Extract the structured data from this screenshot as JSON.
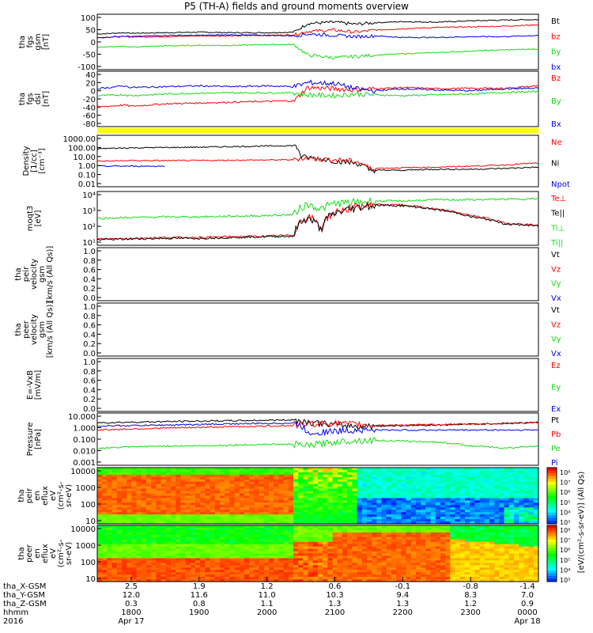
{
  "title": "P5 (TH-A) fields and ground moments overview",
  "colors": {
    "black": "#000000",
    "red": "#ff0000",
    "green": "#11dd11",
    "blue": "#0000ee",
    "yellow": "#ffff00"
  },
  "chart_data": [
    {
      "type": "line",
      "panel": "fgs_gsm",
      "ylabel": [
        "tha",
        "fgs",
        "gsm",
        "[nT]"
      ],
      "yticks": [
        "100",
        "50",
        "0",
        "-50",
        "-100"
      ],
      "ylim": [
        -100,
        110
      ],
      "legend": [
        {
          "name": "Bt",
          "color": "black"
        },
        {
          "name": "bz",
          "color": "red"
        },
        {
          "name": "by",
          "color": "green"
        },
        {
          "name": "bx",
          "color": "blue"
        }
      ],
      "x_hours": [
        17.5,
        17.9,
        18.0,
        18.5,
        19.0,
        19.5,
        20.0,
        20.4,
        20.6,
        21.0,
        21.3,
        21.6,
        22.0,
        22.5,
        23.0,
        23.5,
        24.0
      ],
      "series": [
        {
          "name": "Bt",
          "values": [
            35,
            40,
            38,
            40,
            42,
            40,
            40,
            42,
            75,
            80,
            72,
            78,
            82,
            80,
            85,
            88,
            90
          ]
        },
        {
          "name": "bz",
          "values": [
            22,
            25,
            24,
            25,
            28,
            28,
            30,
            32,
            45,
            50,
            42,
            50,
            55,
            60,
            62,
            65,
            70
          ]
        },
        {
          "name": "by",
          "values": [
            -15,
            -12,
            -14,
            -10,
            -8,
            -8,
            -5,
            -5,
            -45,
            -55,
            -50,
            -45,
            -40,
            -35,
            -30,
            -25,
            -22
          ]
        },
        {
          "name": "bx",
          "values": [
            20,
            28,
            25,
            30,
            30,
            32,
            30,
            28,
            35,
            30,
            25,
            28,
            22,
            22,
            25,
            25,
            30
          ]
        }
      ]
    },
    {
      "type": "line",
      "panel": "fgs_dsl",
      "ylabel": [
        "tha",
        "fgs",
        "dsl",
        "[nT]"
      ],
      "yticks": [
        "40",
        "20",
        "0",
        "-20",
        "-40",
        "-60",
        "-80"
      ],
      "ylim": [
        -88,
        48
      ],
      "legend": [
        {
          "name": "Bz",
          "color": "red"
        },
        {
          "name": "By",
          "color": "green"
        },
        {
          "name": "Bx",
          "color": "blue"
        }
      ],
      "x_hours": [
        17.5,
        17.9,
        18.0,
        18.5,
        19.0,
        19.5,
        20.0,
        20.4,
        20.6,
        21.0,
        21.3,
        21.6,
        22.0,
        22.5,
        23.0,
        23.5,
        24.0
      ],
      "series": [
        {
          "name": "Bz",
          "values": [
            -40,
            -35,
            -38,
            -32,
            -30,
            -28,
            -26,
            -25,
            8,
            5,
            2,
            5,
            8,
            5,
            6,
            6,
            12
          ]
        },
        {
          "name": "By",
          "values": [
            -12,
            -10,
            -12,
            -8,
            -6,
            -5,
            -5,
            -5,
            -10,
            -12,
            -8,
            -10,
            -12,
            -10,
            -8,
            -4,
            -2
          ]
        },
        {
          "name": "Bx",
          "values": [
            5,
            12,
            8,
            10,
            12,
            10,
            12,
            10,
            20,
            18,
            5,
            0,
            5,
            2,
            0,
            5,
            6
          ]
        }
      ]
    },
    {
      "type": "line",
      "panel": "density",
      "ylabel": [
        "Density",
        "[1/cc]",
        "[cm⁻³]"
      ],
      "yscale": "log",
      "yticks": [
        "1000.00",
        "100.00",
        "10.00",
        "1.00",
        "0.10",
        "0.01"
      ],
      "ylim": [
        0.01,
        1000
      ],
      "legend": [
        {
          "name": "Ne",
          "color": "red"
        },
        {
          "name": "Ni",
          "color": "black"
        },
        {
          "name": "Npot",
          "color": "blue"
        }
      ],
      "x_hours": [
        17.5,
        18.0,
        18.5,
        19.0,
        19.5,
        20.0,
        20.4,
        20.5,
        20.8,
        21.0,
        21.3,
        21.5,
        22.0,
        22.5,
        23.0,
        23.5,
        24.0
      ],
      "series": [
        {
          "name": "Ni",
          "values": [
            50,
            60,
            65,
            70,
            80,
            90,
            100,
            8,
            5,
            3,
            2,
            0.4,
            0.4,
            0.5,
            0.5,
            0.6,
            0.8
          ]
        },
        {
          "name": "Ne",
          "values": [
            3,
            3.5,
            3.5,
            3.5,
            3.8,
            4,
            4.2,
            6,
            5,
            4,
            3,
            0.6,
            0.7,
            0.8,
            1.0,
            1.3,
            2
          ]
        },
        {
          "name": "Npot",
          "values": [
            1,
            1,
            1,
            null,
            null,
            null,
            null,
            null,
            null,
            null,
            null,
            null,
            null,
            null,
            null,
            null,
            null
          ]
        }
      ]
    },
    {
      "type": "line",
      "panel": "temperature",
      "ylabel": [
        "moqt3",
        "[eV]"
      ],
      "yscale": "log",
      "yticks": [
        "10⁴",
        "10³",
        "10²",
        "10¹"
      ],
      "ylim": [
        8,
        20000
      ],
      "legend": [
        {
          "name": "Te⊥",
          "color": "red"
        },
        {
          "name": "Te||",
          "color": "black"
        },
        {
          "name": "Ti⊥",
          "color": "green"
        },
        {
          "name": "Ti||",
          "color": "green"
        }
      ],
      "x_hours": [
        17.5,
        18.0,
        18.5,
        19.0,
        19.5,
        20.0,
        20.4,
        20.6,
        20.8,
        21.0,
        21.3,
        21.6,
        22.0,
        22.5,
        23.0,
        23.5,
        24.0
      ],
      "series": [
        {
          "name": "Ti⊥",
          "values": [
            400,
            450,
            500,
            500,
            550,
            600,
            700,
            3000,
            1500,
            3500,
            4000,
            5000,
            5000,
            6000,
            6000,
            6500,
            7000
          ]
        },
        {
          "name": "Te⊥",
          "values": [
            20,
            22,
            25,
            25,
            28,
            30,
            35,
            500,
            80,
            900,
            2000,
            3000,
            2800,
            1500,
            600,
            200,
            150
          ]
        },
        {
          "name": "Te||",
          "values": [
            18,
            20,
            22,
            22,
            25,
            28,
            30,
            400,
            60,
            800,
            1800,
            2800,
            2500,
            1400,
            500,
            180,
            130
          ]
        }
      ]
    },
    {
      "type": "line",
      "panel": "peir_velocity",
      "ylabel": [
        "tha",
        "peir",
        "velocity",
        "gsm",
        "[km/s (All Qs)]"
      ],
      "yticks": [
        "1.0",
        "0.8",
        "0.6",
        "0.4",
        "0.2",
        "0.0"
      ],
      "ylim": [
        0,
        1
      ],
      "legend": [
        {
          "name": "Vt",
          "color": "black"
        },
        {
          "name": "Vz",
          "color": "red"
        },
        {
          "name": "Vy",
          "color": "green"
        },
        {
          "name": "Vx",
          "color": "blue"
        }
      ]
    },
    {
      "type": "line",
      "panel": "peer_velocity",
      "ylabel": [
        "tha",
        "peer",
        "velocity",
        "gsm",
        "[km/s (All Qs)]"
      ],
      "yticks": [
        "1.0",
        "0.8",
        "0.6",
        "0.4",
        "0.2",
        "0.0"
      ],
      "ylim": [
        0,
        1
      ],
      "legend": [
        {
          "name": "Vt",
          "color": "black"
        },
        {
          "name": "Vz",
          "color": "red"
        },
        {
          "name": "Vy",
          "color": "green"
        },
        {
          "name": "Vx",
          "color": "blue"
        }
      ]
    },
    {
      "type": "line",
      "panel": "efield",
      "ylabel": [
        "E=-VxB",
        "[mV/m]"
      ],
      "yticks": [
        "1.0",
        "0.8",
        "0.6",
        "0.4",
        "0.2",
        "0.0"
      ],
      "ylim": [
        0,
        1
      ],
      "legend": [
        {
          "name": "Ez",
          "color": "red"
        },
        {
          "name": "Ey",
          "color": "green"
        },
        {
          "name": "Ex",
          "color": "blue"
        }
      ]
    },
    {
      "type": "line",
      "panel": "pressure",
      "ylabel": [
        "Pressure",
        "[nPa]"
      ],
      "yscale": "log",
      "yticks": [
        "10.000",
        "1.000",
        "0.100",
        "0.010",
        "0.001"
      ],
      "ylim": [
        0.001,
        10
      ],
      "legend": [
        {
          "name": "Pt",
          "color": "black"
        },
        {
          "name": "Pb",
          "color": "red"
        },
        {
          "name": "Pe",
          "color": "green"
        },
        {
          "name": "Pi",
          "color": "blue"
        }
      ],
      "x_hours": [
        17.5,
        18.0,
        18.5,
        19.0,
        19.5,
        20.0,
        20.4,
        20.6,
        21.0,
        21.3,
        21.6,
        22.0,
        22.5,
        23.0,
        23.5,
        24.0
      ],
      "series": [
        {
          "name": "Pt",
          "values": [
            1.8,
            2.0,
            2.2,
            2.4,
            2.6,
            2.8,
            3.0,
            2.0,
            1.2,
            1.0,
            1.0,
            1.1,
            1.2,
            1.4,
            1.6,
            2.0
          ]
        },
        {
          "name": "Pb",
          "values": [
            0.5,
            0.6,
            0.7,
            0.8,
            0.9,
            1.0,
            1.1,
            1.5,
            1.6,
            1.3,
            1.2,
            1.2,
            1.3,
            1.4,
            1.6,
            1.8
          ]
        },
        {
          "name": "Pe",
          "values": [
            0.02,
            0.025,
            0.03,
            0.03,
            0.035,
            0.04,
            0.04,
            0.03,
            0.06,
            0.08,
            0.08,
            0.07,
            0.06,
            0.03,
            0.02,
            0.03
          ]
        },
        {
          "name": "Pi",
          "values": [
            1.0,
            1.1,
            1.2,
            1.3,
            1.5,
            1.6,
            1.7,
            0.3,
            0.4,
            0.5,
            0.5,
            0.5,
            0.5,
            0.5,
            0.5,
            0.5
          ]
        }
      ]
    },
    {
      "type": "heatmap",
      "panel": "peir_eflux",
      "ylabel": [
        "tha",
        "peir",
        "en",
        "eflux",
        "eV",
        "(cm²-s-",
        "sr-eV)"
      ],
      "yscale": "log",
      "yticks": [
        "10000",
        "1000",
        "100",
        "10"
      ],
      "ylim": [
        6,
        20000
      ],
      "colorbar_ticks": [
        "10⁸",
        "10⁷",
        "10⁶",
        "10⁵",
        "10⁴",
        "10³"
      ],
      "colorbar_label": "[eV/(cm²-s-sr-eV)] (All Qs)"
    },
    {
      "type": "heatmap",
      "panel": "peer_eflux",
      "ylabel": [
        "tha",
        "peer",
        "en",
        "eflux",
        "eV",
        "(cm²-s-",
        "sr-eV)"
      ],
      "yscale": "log",
      "yticks": [
        "10000",
        "1000",
        "100",
        "10"
      ],
      "ylim": [
        6,
        20000
      ],
      "colorbar_ticks": [
        "10⁸",
        "10⁷",
        "10⁶",
        "10⁵",
        "10⁴",
        "10³"
      ],
      "colorbar_label": "[eV/(cm²-s-sr-eV)] (All Qs)"
    }
  ],
  "footer": {
    "rows": [
      {
        "label": "tha_X-GSM",
        "values": [
          "2.5",
          "1.9",
          "1.2",
          "0.6",
          "-0.1",
          "-0.8",
          "-1.4"
        ]
      },
      {
        "label": "tha_Y-GSM",
        "values": [
          "12.0",
          "11.6",
          "11.0",
          "10.3",
          "9.4",
          "8.3",
          "7.0"
        ]
      },
      {
        "label": "tha_Z-GSM",
        "values": [
          "0.3",
          "0.8",
          "1.1",
          "1.3",
          "1.3",
          "1.2",
          "0.9"
        ]
      },
      {
        "label": "hhmm",
        "values": [
          "1800",
          "1900",
          "2000",
          "2100",
          "2200",
          "2300",
          "0000"
        ]
      },
      {
        "label": "2016",
        "values": [
          "Apr 17",
          "",
          "",
          "",
          "",
          "",
          "Apr 18"
        ]
      }
    ]
  }
}
